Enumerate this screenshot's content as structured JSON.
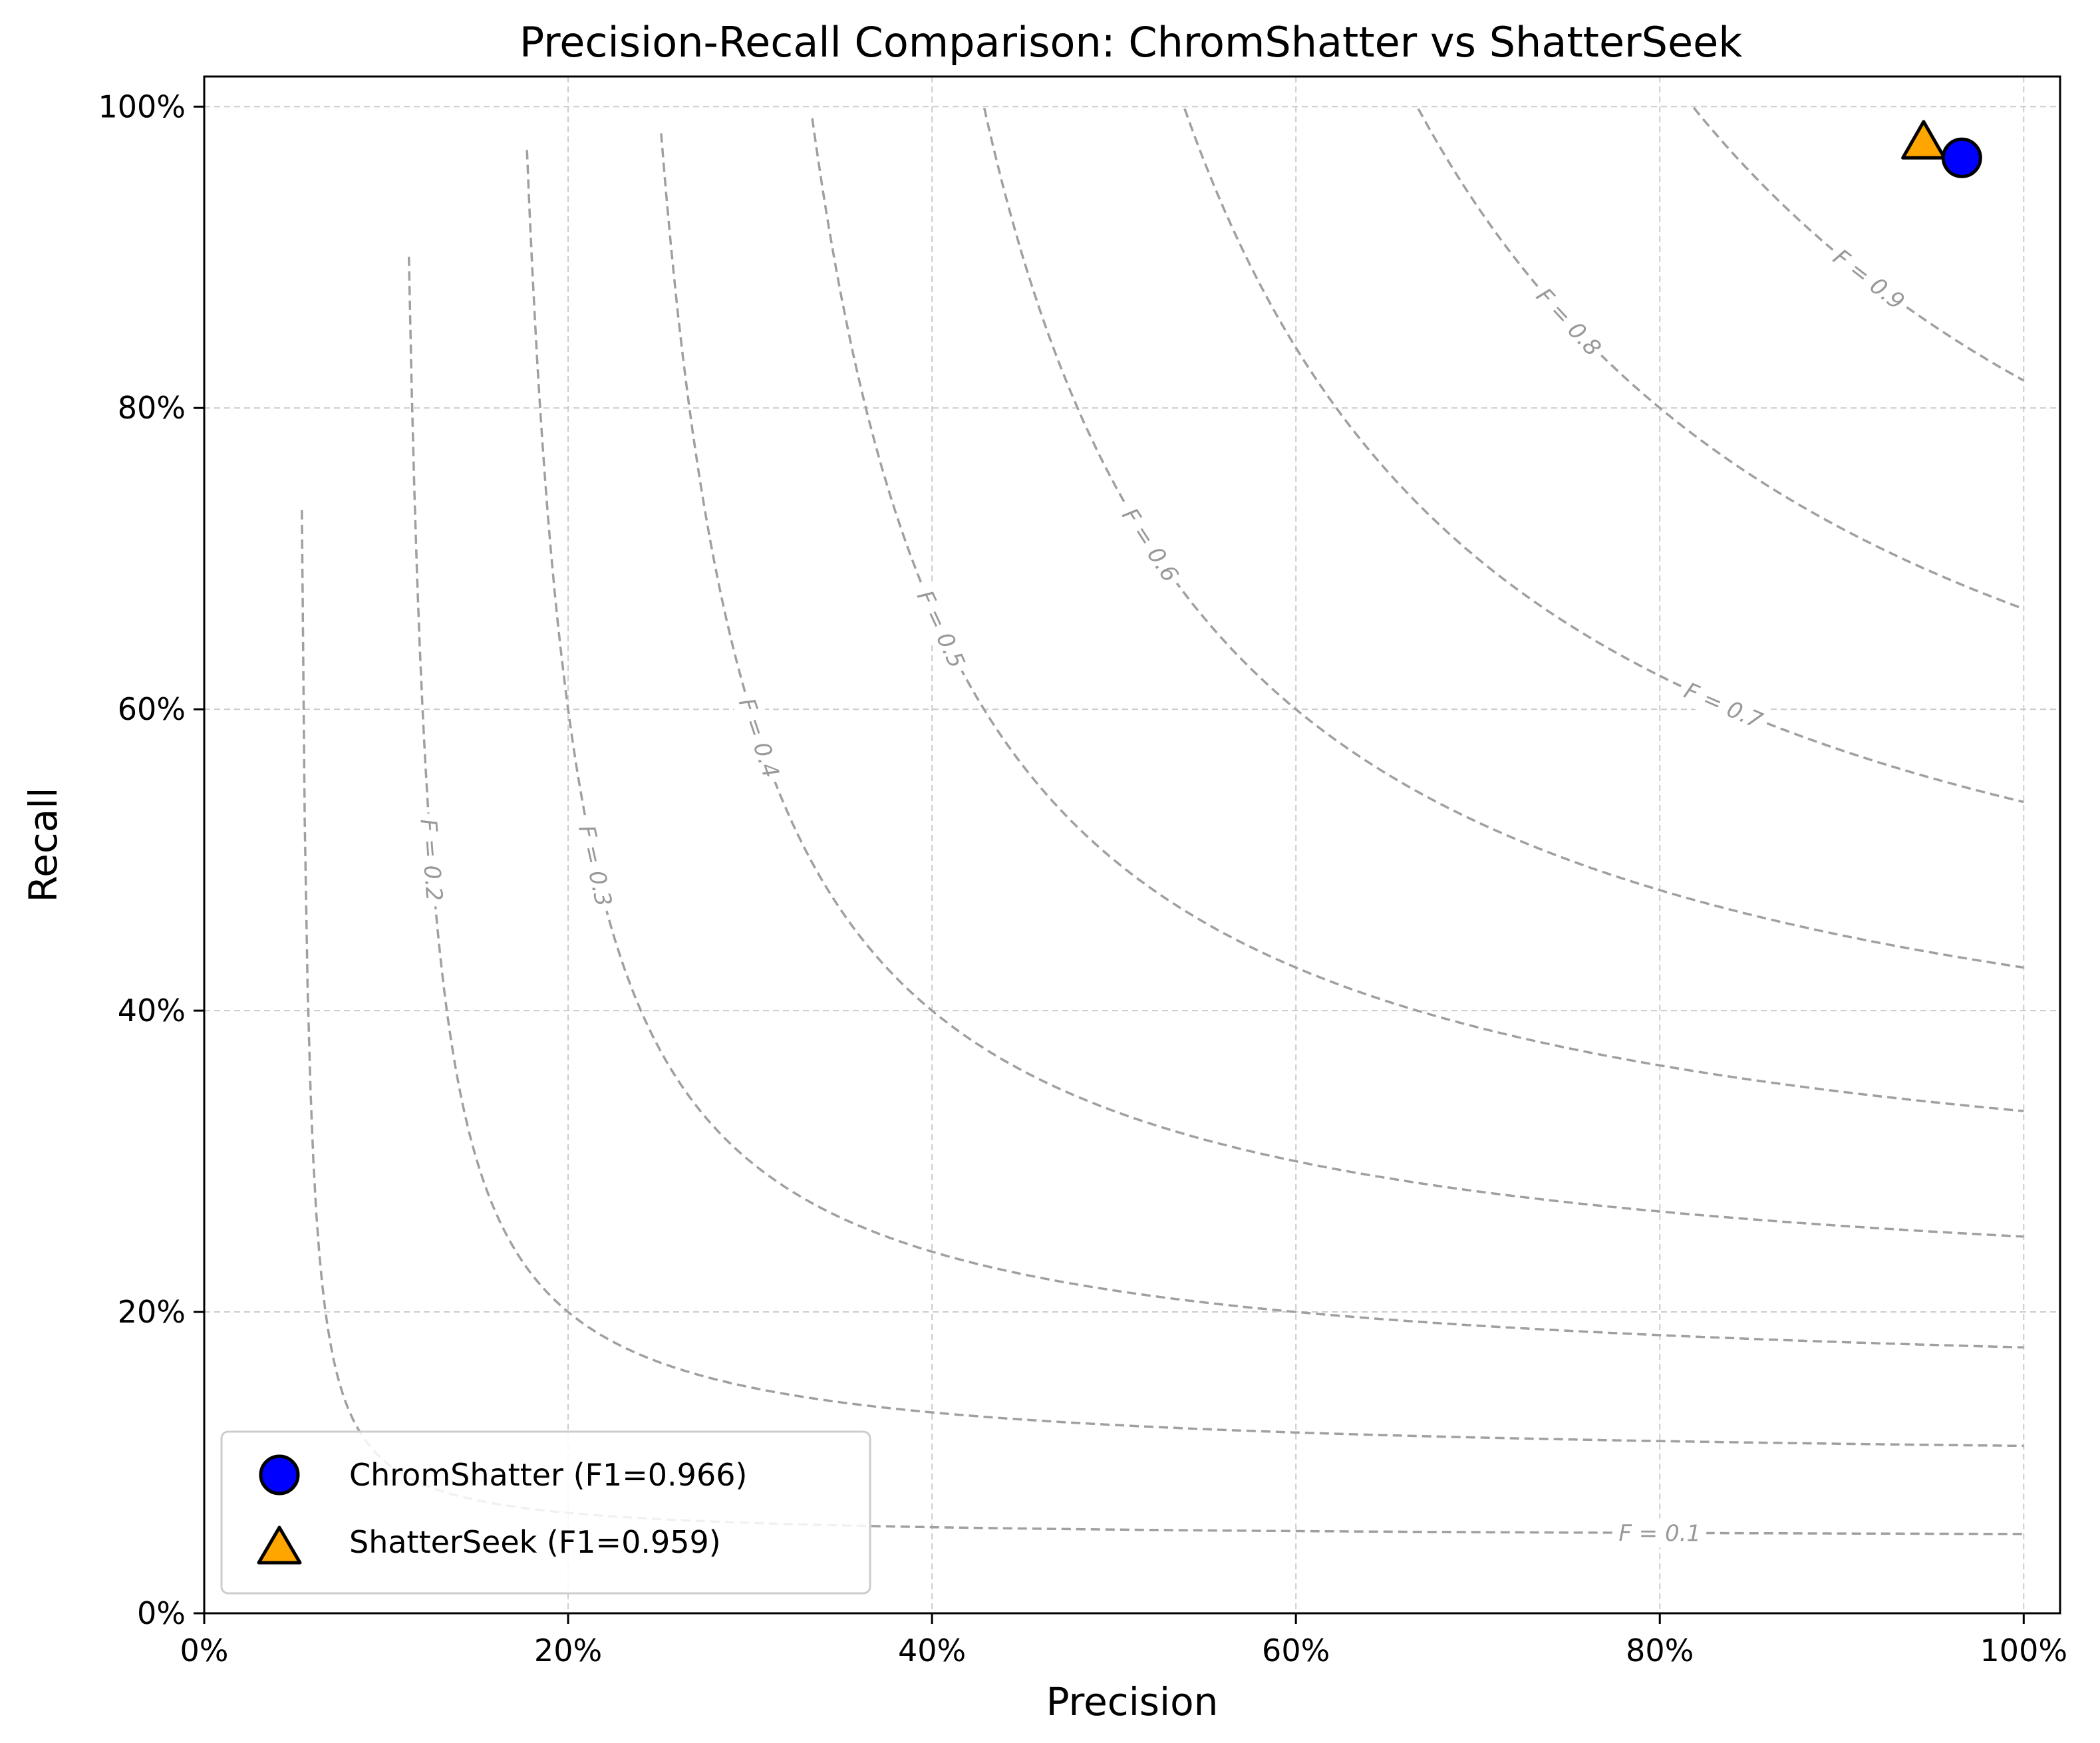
{
  "chart_data": {
    "type": "scatter",
    "title": "Precision-Recall Comparison: ChromShatter vs ShatterSeek",
    "xlabel": "Precision",
    "ylabel": "Recall",
    "xlim": [
      0,
      1.02
    ],
    "ylim": [
      0,
      1.02
    ],
    "x_ticks": [
      0,
      0.2,
      0.4,
      0.6,
      0.8,
      1.0
    ],
    "x_tick_labels": [
      "0%",
      "20%",
      "40%",
      "60%",
      "80%",
      "100%"
    ],
    "y_ticks": [
      0,
      0.2,
      0.4,
      0.6,
      0.8,
      1.0
    ],
    "y_tick_labels": [
      "0%",
      "20%",
      "40%",
      "60%",
      "80%",
      "100%"
    ],
    "grid": true,
    "legend_position": "bottom-left",
    "series": [
      {
        "name": "ChromShatter (F1=0.966)",
        "marker": "circle",
        "color": "#0000ff",
        "edge_color": "#000000",
        "points": [
          {
            "x": 0.966,
            "y": 0.966
          }
        ]
      },
      {
        "name": "ShatterSeek (F1=0.959)",
        "marker": "triangle",
        "color": "#ffa500",
        "edge_color": "#000000",
        "points": [
          {
            "x": 0.945,
            "y": 0.975
          }
        ]
      }
    ],
    "f1_contours": {
      "values": [
        0.1,
        0.2,
        0.3,
        0.4,
        0.5,
        0.6,
        0.7,
        0.8,
        0.9
      ],
      "labels": [
        "F = 0.1",
        "F = 0.2",
        "F = 0.3",
        "F = 0.4",
        "F = 0.5",
        "F = 0.6",
        "F = 0.7",
        "F = 0.8",
        "F = 0.9"
      ],
      "color": "#a0a0a0",
      "style": "dashed"
    }
  }
}
